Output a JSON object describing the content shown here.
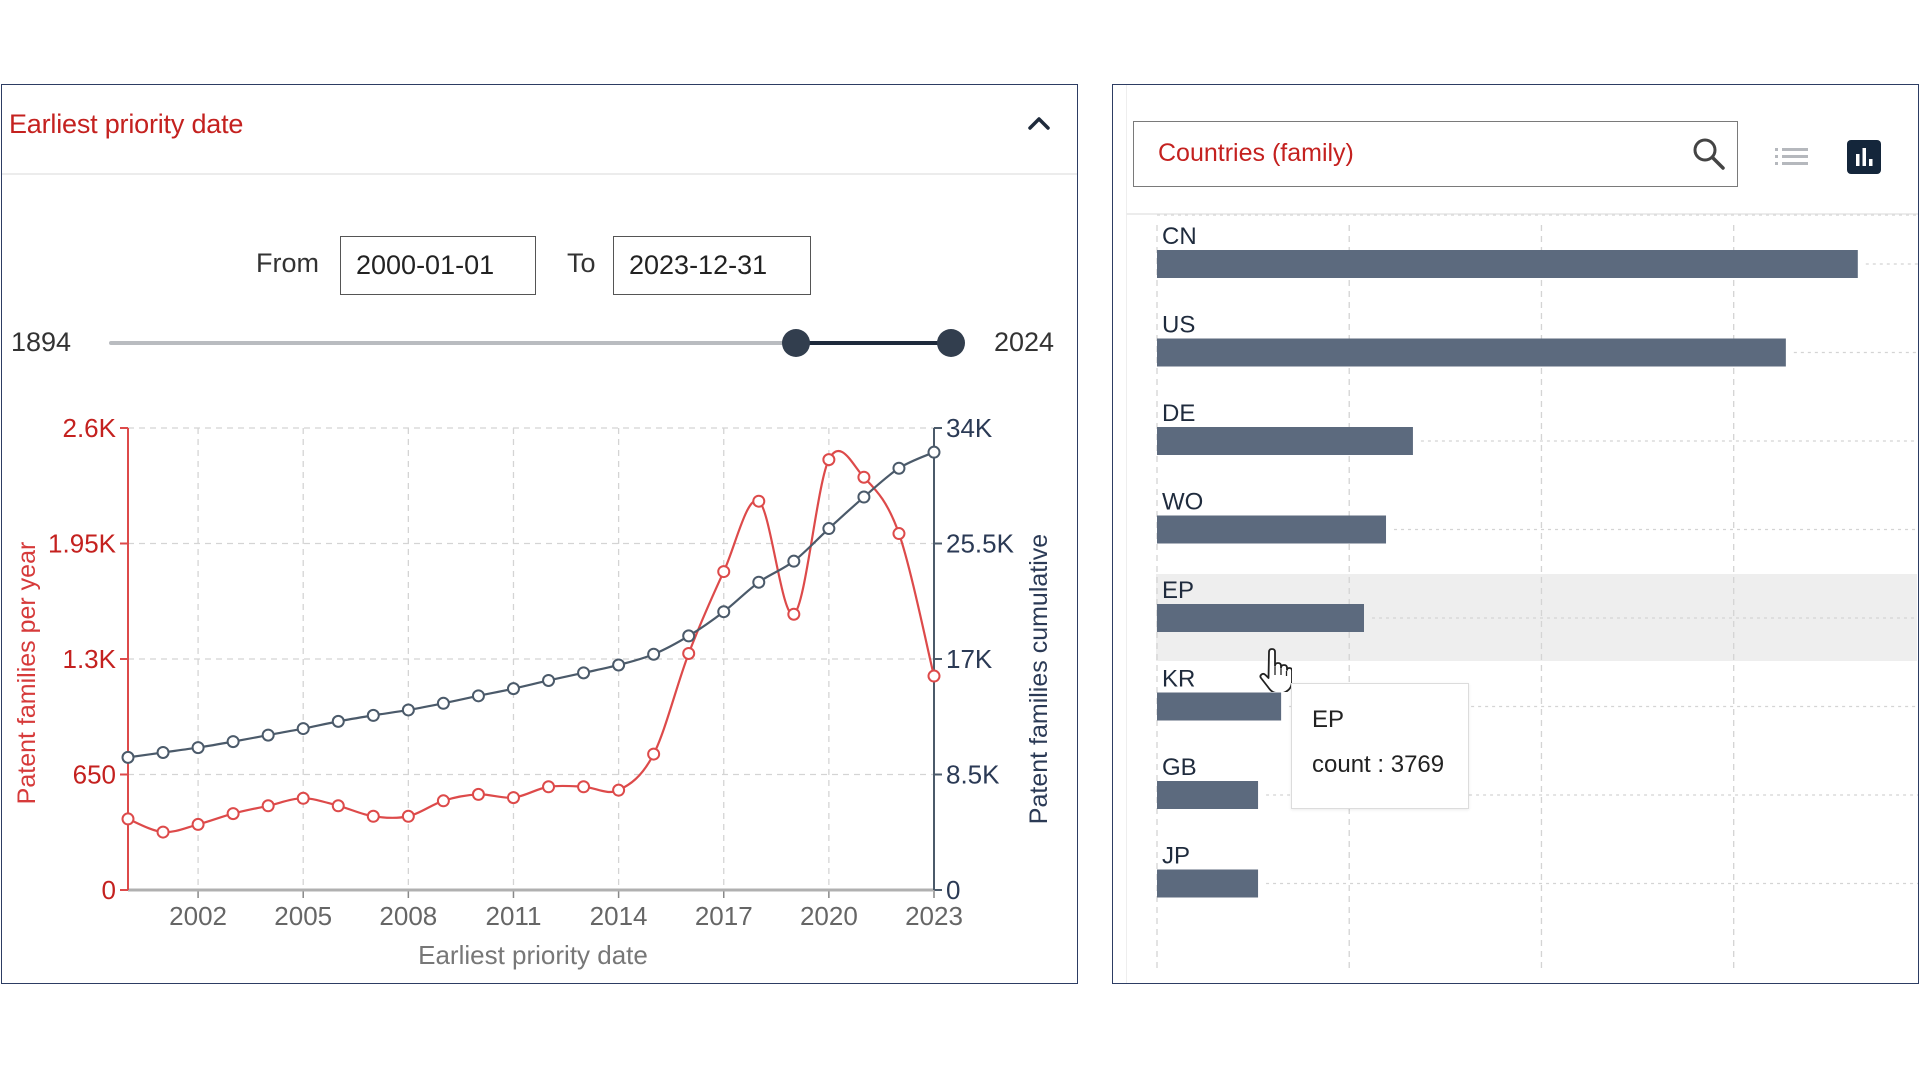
{
  "left_panel": {
    "title": "Earliest priority date",
    "collapse_icon": "chevron-up-icon",
    "from_label": "From",
    "from_value": "2000-01-01",
    "to_label": "To",
    "to_value": "2023-12-31",
    "slider": {
      "min_label": "1894",
      "max_label": "2024",
      "min": 1894,
      "max": 2024,
      "selected_start": 2000,
      "selected_end": 2024
    }
  },
  "right_panel": {
    "search_placeholder": "Countries (family)",
    "search_icon": "search-icon",
    "list_view_icon": "list-icon",
    "chart_view_icon": "bar-chart-icon",
    "tooltip": {
      "title": "EP",
      "value_text": "count : 3769"
    }
  },
  "colors": {
    "accent_red": "#c4211f",
    "series_red": "#dd4a4a",
    "series_dark": "#4b5a6a",
    "bar": "#5c6a7e",
    "panel_border": "#2d3d63"
  },
  "chart_data": [
    {
      "type": "line",
      "title": "Earliest priority date",
      "xlabel": "Earliest priority date",
      "ylabel": "Patent families per year",
      "y2label": "Patent families cumulative",
      "x": [
        2000,
        2001,
        2002,
        2003,
        2004,
        2005,
        2006,
        2007,
        2008,
        2009,
        2010,
        2011,
        2012,
        2013,
        2014,
        2015,
        2016,
        2017,
        2018,
        2019,
        2020,
        2021,
        2022,
        2023
      ],
      "x_ticks": [
        "2002",
        "2005",
        "2008",
        "2011",
        "2014",
        "2017",
        "2020",
        "2023"
      ],
      "x_tick_values": [
        2002,
        2005,
        2008,
        2011,
        2014,
        2017,
        2020,
        2023
      ],
      "xlim": [
        2000,
        2023
      ],
      "ylim": [
        0,
        2600
      ],
      "y_ticks": [
        "0",
        "650",
        "1.3K",
        "1.95K",
        "2.6K"
      ],
      "y_tick_values": [
        0,
        650,
        1300,
        1950,
        2600
      ],
      "y2lim": [
        0,
        34000
      ],
      "y2_ticks": [
        "0",
        "8.5K",
        "17K",
        "25.5K",
        "34K"
      ],
      "y2_tick_values": [
        0,
        8500,
        17000,
        25500,
        34000
      ],
      "grid": true,
      "series": [
        {
          "name": "Patent families per year",
          "axis": "left",
          "values": [
            400,
            326,
            369,
            430,
            474,
            516,
            474,
            415,
            415,
            502,
            538,
            520,
            581,
            581,
            562,
            765,
            1331,
            1792,
            2188,
            1552,
            2422,
            2323,
            2006,
            1204
          ]
        },
        {
          "name": "Patent families cumulative",
          "axis": "right",
          "values": [
            9760,
            10120,
            10480,
            10920,
            11400,
            11880,
            12410,
            12850,
            13250,
            13740,
            14290,
            14820,
            15420,
            15980,
            16560,
            17350,
            18700,
            20480,
            22650,
            24200,
            26600,
            28920,
            31040,
            32220
          ]
        }
      ]
    },
    {
      "type": "bar",
      "orientation": "horizontal",
      "title": "Countries (family)",
      "categories": [
        "CN",
        "US",
        "DE",
        "WO",
        "EP",
        "KR",
        "GB",
        "JP"
      ],
      "values": [
        12760,
        11450,
        4660,
        4170,
        3769,
        2260,
        1840,
        1840
      ],
      "xlim": [
        0,
        14000
      ],
      "grid": true,
      "highlighted": "EP"
    }
  ]
}
